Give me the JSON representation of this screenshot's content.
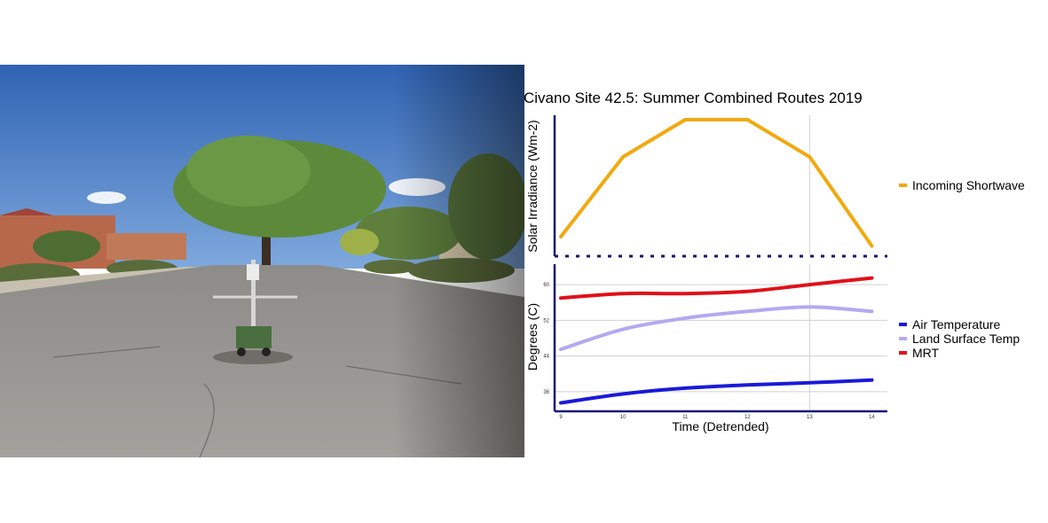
{
  "photo": {
    "subject": "street-scene-with-mobile-weather-cart",
    "colors": {
      "sky": "#4a7fc8",
      "tree": "#5d8a3a",
      "road": "#9a9893",
      "wall": "#b8684a"
    }
  },
  "chart_data": {
    "type": "line",
    "title": "Civano Site 42.5: Summer Combined Routes 2019",
    "xlabel": "Time (Detrended)",
    "x": [
      9,
      10,
      11,
      12,
      13,
      14
    ],
    "x_tick_labels": [
      "9",
      "10",
      "11",
      "12",
      "13",
      "14"
    ],
    "xlim": [
      8.9,
      14.25
    ],
    "grid": true,
    "panels": [
      {
        "ylabel": "Solar Irradiance (Wm-2)",
        "ylim": [
          0,
          1
        ],
        "y_tick_labels": [],
        "legend_placement": "right",
        "series": [
          {
            "name": "Incoming Shortwave",
            "color": "#f2a90f",
            "x": [
              9,
              10,
              11,
              12,
              13,
              14
            ],
            "values": [
              0.12,
              0.72,
              1.0,
              1.0,
              0.72,
              0.05
            ]
          }
        ]
      },
      {
        "ylabel": "Degrees (C)",
        "ylim": [
          32,
          64
        ],
        "y_ticks": [
          36,
          44,
          52,
          60
        ],
        "y_tick_labels": [
          "36",
          "44",
          "52",
          "60"
        ],
        "legend_placement": "right",
        "series": [
          {
            "name": "Air Temperature",
            "color": "#1a1ad9",
            "x": [
              9,
              10,
              11,
              12,
              13,
              14
            ],
            "values": [
              33.5,
              35.5,
              36.8,
              37.5,
              38.0,
              38.6
            ]
          },
          {
            "name": "Land Surface Temp",
            "color": "#b5a8f0",
            "x": [
              9,
              10,
              11,
              12,
              13,
              14
            ],
            "values": [
              45.5,
              50.0,
              52.5,
              54.0,
              55.0,
              54.0
            ]
          },
          {
            "name": "MRT",
            "color": "#e0101a",
            "x": [
              9,
              10,
              11,
              12,
              13,
              14
            ],
            "values": [
              57.0,
              58.0,
              58.0,
              58.5,
              60.0,
              61.5
            ]
          }
        ]
      }
    ]
  }
}
